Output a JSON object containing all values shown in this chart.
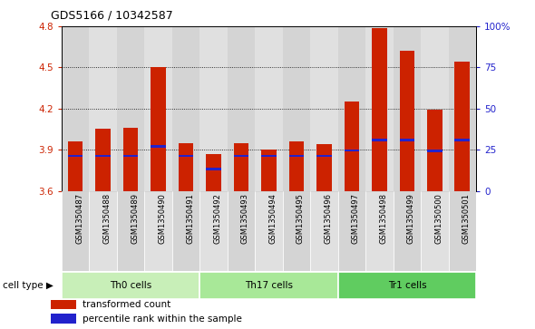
{
  "title": "GDS5166 / 10342587",
  "samples": [
    "GSM1350487",
    "GSM1350488",
    "GSM1350489",
    "GSM1350490",
    "GSM1350491",
    "GSM1350492",
    "GSM1350493",
    "GSM1350494",
    "GSM1350495",
    "GSM1350496",
    "GSM1350497",
    "GSM1350498",
    "GSM1350499",
    "GSM1350500",
    "GSM1350501"
  ],
  "bar_tops": [
    3.96,
    4.05,
    4.06,
    4.5,
    3.95,
    3.87,
    3.95,
    3.9,
    3.96,
    3.94,
    4.25,
    4.79,
    4.62,
    4.19,
    4.54
  ],
  "blue_pos": [
    3.855,
    3.855,
    3.855,
    3.925,
    3.855,
    3.76,
    3.855,
    3.855,
    3.855,
    3.855,
    3.895,
    3.97,
    3.97,
    3.89,
    3.97
  ],
  "ymin": 3.6,
  "ymax": 4.8,
  "yticks": [
    3.6,
    3.9,
    4.2,
    4.5,
    4.8
  ],
  "right_yticks": [
    0,
    25,
    50,
    75,
    100
  ],
  "cell_groups": [
    {
      "label": "Th0 cells",
      "start": 0,
      "end": 4,
      "color": "#c8efb8"
    },
    {
      "label": "Th17 cells",
      "start": 5,
      "end": 9,
      "color": "#a8e898"
    },
    {
      "label": "Tr1 cells",
      "start": 10,
      "end": 14,
      "color": "#60cc60"
    }
  ],
  "bar_color": "#cc2200",
  "blue_color": "#2222cc",
  "bar_width": 0.55,
  "plot_bg": "#ffffff",
  "left_label_color": "#cc2200",
  "right_label_color": "#2222cc",
  "col_bg_even": "#d4d4d4",
  "col_bg_odd": "#e0e0e0"
}
